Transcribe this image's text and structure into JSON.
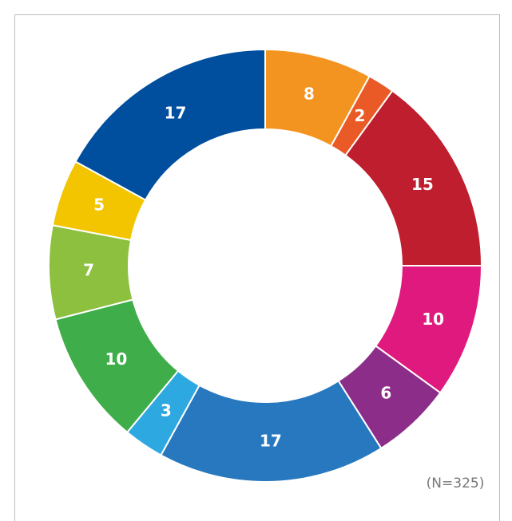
{
  "chart_data": {
    "type": "donut",
    "values": [
      8,
      2,
      15,
      10,
      6,
      17,
      3,
      10,
      7,
      5,
      17
    ],
    "colors": [
      "#f39320",
      "#ea5a26",
      "#be1e2d",
      "#e0197f",
      "#8c2d8a",
      "#2778bf",
      "#2ea8e0",
      "#3fad49",
      "#8dc03f",
      "#f2c500",
      "#004f9f"
    ],
    "annotation": "(N=325)"
  }
}
